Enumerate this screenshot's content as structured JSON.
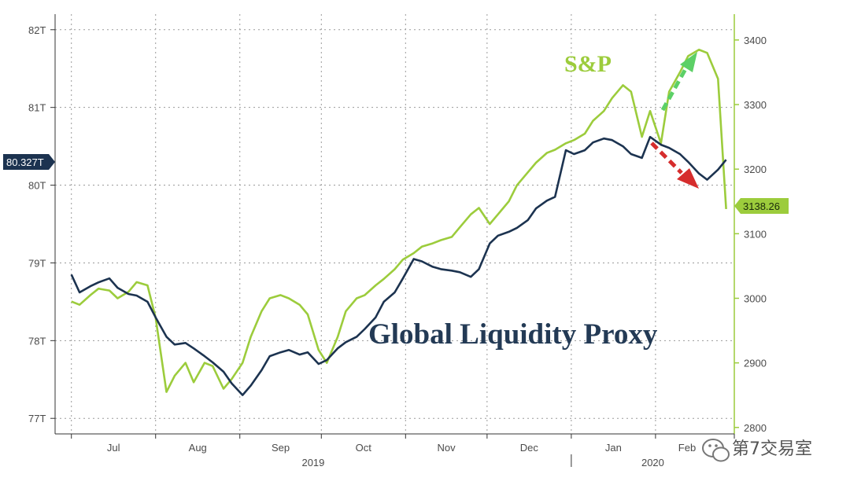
{
  "watermark": {
    "text": "第7交易室"
  },
  "chart_data": {
    "type": "line",
    "x": [
      "2019-07-01",
      "2019-07-04",
      "2019-07-08",
      "2019-07-11",
      "2019-07-15",
      "2019-07-18",
      "2019-07-22",
      "2019-07-25",
      "2019-07-29",
      "2019-08-01",
      "2019-08-05",
      "2019-08-08",
      "2019-08-12",
      "2019-08-15",
      "2019-08-19",
      "2019-08-22",
      "2019-08-26",
      "2019-08-29",
      "2019-09-02",
      "2019-09-05",
      "2019-09-09",
      "2019-09-12",
      "2019-09-16",
      "2019-09-19",
      "2019-09-23",
      "2019-09-26",
      "2019-09-30",
      "2019-10-03",
      "2019-10-07",
      "2019-10-10",
      "2019-10-14",
      "2019-10-17",
      "2019-10-21",
      "2019-10-24",
      "2019-10-28",
      "2019-10-31",
      "2019-11-04",
      "2019-11-07",
      "2019-11-11",
      "2019-11-14",
      "2019-11-18",
      "2019-11-21",
      "2019-11-25",
      "2019-11-28",
      "2019-12-02",
      "2019-12-05",
      "2019-12-09",
      "2019-12-12",
      "2019-12-16",
      "2019-12-19",
      "2019-12-23",
      "2019-12-26",
      "2019-12-30",
      "2020-01-02",
      "2020-01-06",
      "2020-01-09",
      "2020-01-13",
      "2020-01-16",
      "2020-01-20",
      "2020-01-23",
      "2020-01-27",
      "2020-01-30",
      "2020-02-03",
      "2020-02-06",
      "2020-02-10",
      "2020-02-13",
      "2020-02-17",
      "2020-02-20",
      "2020-02-24",
      "2020-02-27"
    ],
    "series": [
      {
        "name": "Global Liquidity Proxy",
        "axis": "left",
        "color": "#1c3350",
        "values": [
          78.85,
          78.62,
          78.7,
          78.75,
          78.8,
          78.68,
          78.6,
          78.58,
          78.5,
          78.3,
          78.05,
          77.95,
          77.97,
          77.9,
          77.8,
          77.72,
          77.6,
          77.45,
          77.3,
          77.42,
          77.62,
          77.8,
          77.85,
          77.88,
          77.82,
          77.85,
          77.7,
          77.75,
          77.9,
          77.98,
          78.05,
          78.15,
          78.3,
          78.5,
          78.62,
          78.8,
          79.05,
          79.02,
          78.95,
          78.92,
          78.9,
          78.88,
          78.82,
          78.92,
          79.25,
          79.35,
          79.4,
          79.45,
          79.55,
          79.7,
          79.8,
          79.85,
          80.45,
          80.4,
          80.45,
          80.55,
          80.6,
          80.58,
          80.5,
          80.4,
          80.35,
          80.62,
          80.52,
          80.48,
          80.4,
          80.3,
          80.15,
          80.07,
          80.2,
          80.327
        ]
      },
      {
        "name": "S&P",
        "axis": "right",
        "color": "#9ccc3c",
        "values": [
          2995,
          2990,
          3005,
          3015,
          3012,
          3000,
          3010,
          3025,
          3020,
          2970,
          2855,
          2880,
          2900,
          2870,
          2900,
          2895,
          2860,
          2875,
          2900,
          2940,
          2980,
          3000,
          3005,
          3000,
          2990,
          2975,
          2920,
          2900,
          2940,
          2980,
          3000,
          3005,
          3020,
          3030,
          3045,
          3060,
          3070,
          3080,
          3085,
          3090,
          3095,
          3110,
          3130,
          3140,
          3115,
          3130,
          3150,
          3175,
          3195,
          3210,
          3225,
          3230,
          3240,
          3245,
          3255,
          3275,
          3290,
          3310,
          3330,
          3320,
          3250,
          3290,
          3240,
          3320,
          3350,
          3375,
          3385,
          3380,
          3340,
          3138.26
        ]
      }
    ],
    "y_left": {
      "ticks": [
        "77T",
        "78T",
        "79T",
        "80T",
        "81T",
        "82T"
      ],
      "ylim": [
        76.8,
        82.2
      ],
      "current_value": "80.327T",
      "current": 80.327
    },
    "y_right": {
      "ticks": [
        "2800",
        "2900",
        "3000",
        "3100",
        "3200",
        "3300",
        "3400"
      ],
      "ylim": [
        2790,
        3440
      ],
      "current_value": "3138.26",
      "current": 3138.26
    },
    "x_ticks": [
      "Jul",
      "Aug",
      "Sep",
      "Oct",
      "Nov",
      "Dec",
      "Jan",
      "Feb"
    ],
    "x_year_labels": [
      "2019",
      "2020"
    ],
    "annotations": {
      "sp_label": "S&P",
      "liquidity_label": "Global Liquidity Proxy",
      "arrow_up_color": "#5cd066",
      "arrow_down_color": "#d62d2d"
    },
    "grid": true,
    "legend": "none"
  }
}
